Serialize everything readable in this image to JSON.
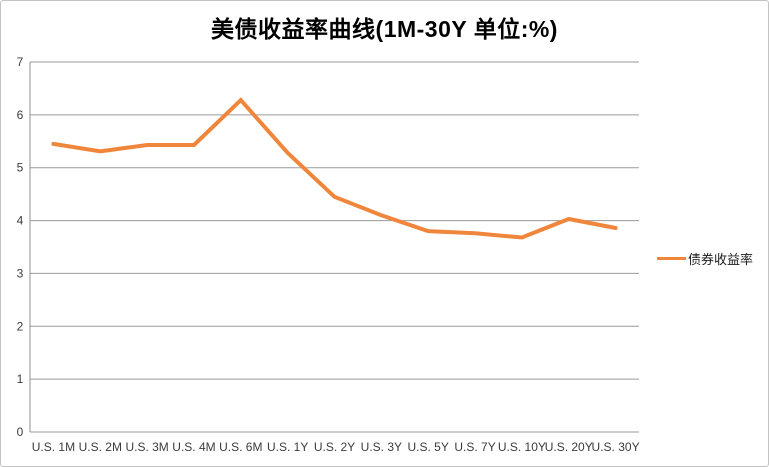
{
  "window": {
    "background": "#ffffff",
    "border_color": "#c3c3c3"
  },
  "chart_data": {
    "type": "line",
    "title": "美债收益率曲线(1M-30Y 单位:%)",
    "categories": [
      "U.S. 1M",
      "U.S. 2M",
      "U.S. 3M",
      "U.S. 4M",
      "U.S. 6M",
      "U.S. 1Y",
      "U.S. 2Y",
      "U.S. 3Y",
      "U.S. 5Y",
      "U.S. 7Y",
      "U.S. 10Y",
      "U.S. 20Y",
      "U.S. 30Y"
    ],
    "series": [
      {
        "name": "债券收益率",
        "values": [
          5.45,
          5.31,
          5.43,
          5.43,
          6.28,
          5.28,
          4.45,
          4.1,
          3.8,
          3.76,
          3.68,
          4.03,
          3.86
        ],
        "color": "#F0863C"
      }
    ],
    "xlabel": "",
    "ylabel": "",
    "ylim": [
      0,
      7
    ],
    "yticks": [
      0,
      1,
      2,
      3,
      4,
      5,
      6,
      7
    ],
    "grid": "horizontal-only",
    "gridline_color": "#9a9a9a",
    "axis_line_color": "#8f8f8f",
    "tick_label_color": "#3c3c3c",
    "legend_position": "right-middle"
  }
}
